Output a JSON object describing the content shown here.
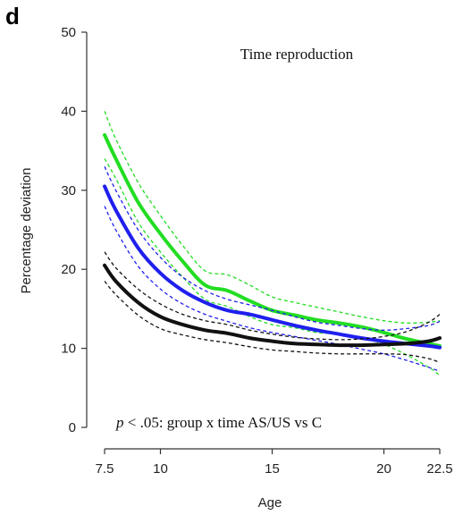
{
  "panel_label": "d",
  "chart_data": {
    "type": "line",
    "title": "Time reproduction",
    "xlabel": "Age",
    "ylabel": "Percentage deviation",
    "xlim": [
      7.5,
      22.5
    ],
    "ylim": [
      0,
      50
    ],
    "x_ticks": [
      7.5,
      10,
      15,
      20,
      22.5
    ],
    "y_ticks": [
      0,
      10,
      20,
      30,
      40,
      50
    ],
    "grid": false,
    "annotation": {
      "italic": "p",
      "text": " < .05: group x time AS/US vs C"
    },
    "x": [
      7.5,
      8,
      9,
      10,
      11,
      12,
      13,
      14,
      15,
      16,
      17,
      18,
      19,
      20,
      21,
      22,
      22.5
    ],
    "series": [
      {
        "color": "#22dd22",
        "values": [
          37,
          34,
          28.5,
          24.5,
          21,
          18,
          17.3,
          16,
          14.8,
          14.2,
          13.6,
          13.2,
          12.7,
          12,
          11.2,
          10.6,
          10.3
        ],
        "upper": [
          40,
          36.5,
          31,
          26.8,
          23,
          19.8,
          19.3,
          18,
          16.5,
          15.8,
          15.2,
          14.6,
          14,
          13.5,
          13.2,
          13.3,
          13.5
        ],
        "lower": [
          34,
          31.5,
          26,
          22.2,
          19,
          16.2,
          15.3,
          14,
          13,
          12.6,
          12,
          11.8,
          11.4,
          10.5,
          9.2,
          7.6,
          6.6
        ]
      },
      {
        "color": "#1f1fee",
        "values": [
          30.5,
          27.5,
          22.7,
          19.5,
          17.3,
          15.8,
          14.8,
          14.3,
          13.6,
          12.9,
          12.3,
          11.8,
          11.3,
          10.9,
          10.6,
          10.3,
          10.1
        ],
        "upper": [
          33,
          30,
          25,
          21.5,
          19,
          17.3,
          16.2,
          15.5,
          14.8,
          14,
          13.3,
          12.9,
          12.5,
          12.3,
          12.5,
          12.9,
          13.4
        ],
        "lower": [
          28,
          25,
          20.4,
          17.5,
          15.6,
          14.3,
          13.4,
          12.6,
          12,
          11.5,
          11,
          10.5,
          9.9,
          9.3,
          8.5,
          7.6,
          7.1
        ]
      },
      {
        "color": "#111111",
        "values": [
          20.5,
          18.5,
          15.8,
          14,
          13,
          12.3,
          11.9,
          11.3,
          10.9,
          10.6,
          10.5,
          10.4,
          10.4,
          10.5,
          10.6,
          10.9,
          11.3
        ],
        "upper": [
          22.2,
          20.2,
          17.5,
          15.6,
          14.3,
          13.5,
          13,
          12.3,
          11.8,
          11.4,
          11.2,
          11.1,
          11.2,
          11.5,
          12.1,
          13.3,
          14.3
        ],
        "lower": [
          18.5,
          16.8,
          14.2,
          12.5,
          11.7,
          11.1,
          10.7,
          10.2,
          9.8,
          9.6,
          9.4,
          9.3,
          9.3,
          9.3,
          9.2,
          8.7,
          8.2
        ]
      }
    ]
  }
}
